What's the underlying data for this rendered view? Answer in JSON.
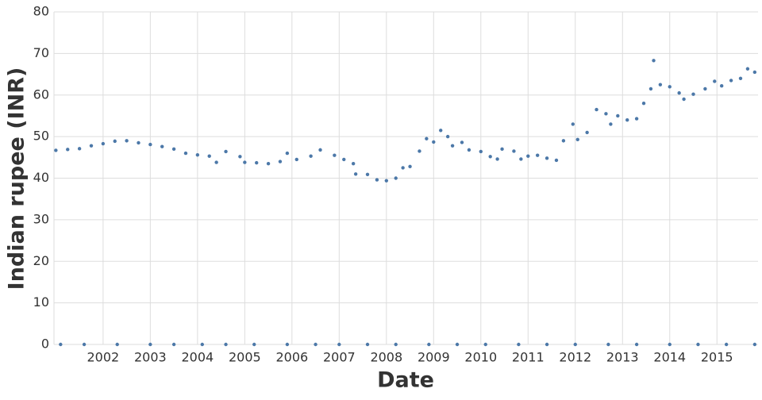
{
  "chart_data": {
    "type": "scatter",
    "x_label": "Date",
    "y_label": "Indian rupee (INR)",
    "xlim": [
      2000.96,
      2015.87
    ],
    "xticks": [
      2002,
      2003,
      2004,
      2005,
      2006,
      2007,
      2008,
      2009,
      2010,
      2011,
      2012,
      2013,
      2014,
      2015
    ],
    "ylim": [
      0,
      80
    ],
    "yticks": [
      0,
      10,
      20,
      30,
      40,
      50,
      60,
      70,
      80
    ],
    "grid": true,
    "series": [
      {
        "color": "#4c78a8",
        "x": [
          2001.0,
          2001.25,
          2001.5,
          2001.75,
          2002.0,
          2002.25,
          2002.5,
          2002.75,
          2003.0,
          2003.25,
          2003.5,
          2003.75,
          2004.0,
          2004.25,
          2004.4,
          2004.6,
          2004.9,
          2005.0,
          2005.25,
          2005.5,
          2005.75,
          2005.9,
          2006.1,
          2006.4,
          2006.6,
          2006.9,
          2007.1,
          2007.3,
          2007.35,
          2007.6,
          2007.8,
          2008.0,
          2008.2,
          2008.35,
          2008.5,
          2008.7,
          2008.85,
          2009.0,
          2009.15,
          2009.3,
          2009.4,
          2009.6,
          2009.75,
          2010.0,
          2010.2,
          2010.35,
          2010.45,
          2010.7,
          2010.85,
          2011.0,
          2011.2,
          2011.4,
          2011.6,
          2011.75,
          2011.95,
          2012.05,
          2012.25,
          2012.45,
          2012.65,
          2012.75,
          2012.9,
          2013.1,
          2013.3,
          2013.45,
          2013.6,
          2013.66,
          2013.8,
          2014.0,
          2014.2,
          2014.3,
          2014.5,
          2014.75,
          2014.95,
          2015.1,
          2015.3,
          2015.5,
          2015.65,
          2015.8,
          2001.1,
          2001.6,
          2002.3,
          2003.0,
          2003.5,
          2004.1,
          2004.6,
          2005.2,
          2005.9,
          2006.5,
          2007.0,
          2007.6,
          2008.2,
          2008.9,
          2009.5,
          2010.1,
          2010.8,
          2011.4,
          2012.0,
          2012.7,
          2013.3,
          2014.0,
          2014.6,
          2015.2,
          2015.8
        ],
        "values": [
          46.7,
          46.9,
          47.1,
          47.8,
          48.3,
          48.9,
          49.0,
          48.5,
          48.1,
          47.6,
          47.0,
          46.0,
          45.6,
          45.3,
          43.8,
          46.4,
          45.2,
          43.8,
          43.7,
          43.5,
          44.0,
          46.0,
          44.5,
          45.3,
          46.8,
          45.5,
          44.5,
          43.5,
          41.0,
          40.9,
          39.6,
          39.4,
          40.0,
          42.5,
          42.8,
          46.5,
          49.5,
          48.7,
          51.5,
          50.0,
          47.8,
          48.6,
          46.8,
          46.4,
          45.2,
          44.6,
          47.0,
          46.5,
          44.6,
          45.3,
          45.5,
          44.8,
          44.3,
          49.0,
          53.0,
          49.3,
          51.0,
          56.5,
          55.5,
          53.0,
          55.0,
          54.0,
          54.3,
          58.0,
          61.5,
          68.3,
          62.5,
          62.0,
          60.5,
          59.0,
          60.2,
          61.5,
          63.3,
          62.2,
          63.5,
          64.0,
          66.3,
          65.5,
          0,
          0,
          0,
          0,
          0,
          0,
          0,
          0,
          0,
          0,
          0,
          0,
          0,
          0,
          0,
          0,
          0,
          0,
          0,
          0,
          0,
          0,
          0,
          0,
          0
        ]
      }
    ]
  }
}
